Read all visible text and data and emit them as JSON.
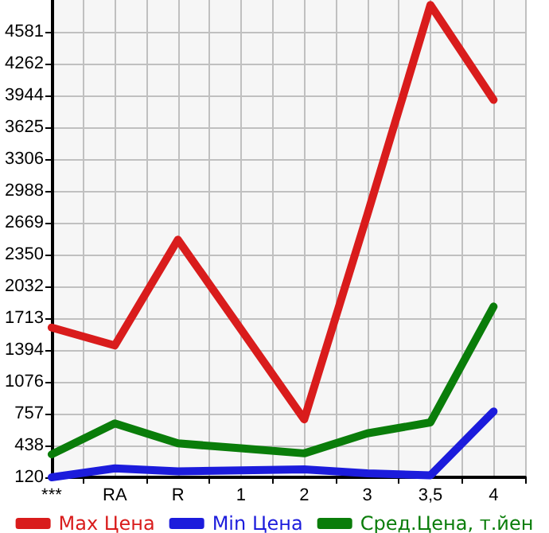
{
  "chart_data": {
    "type": "line",
    "categories": [
      "***",
      "RA",
      "R",
      "1",
      "2",
      "3",
      "3,5",
      "4"
    ],
    "series": [
      {
        "name": "Max Цена",
        "color": "#d91c1c",
        "values": [
          1620,
          1440,
          2500,
          1600,
          700,
          2750,
          4850,
          3900
        ]
      },
      {
        "name": "Min Цена",
        "color": "#1c1cdc",
        "values": [
          120,
          210,
          180,
          190,
          200,
          160,
          140,
          780
        ]
      },
      {
        "name": "Сред.Цена, т.йен",
        "color": "#0a7d0a",
        "values": [
          350,
          660,
          460,
          410,
          360,
          560,
          670,
          1830
        ]
      }
    ],
    "ylim": [
      120,
      4900
    ],
    "yticks": [
      120,
      438,
      757,
      1076,
      1394,
      1713,
      2032,
      2350,
      2669,
      2988,
      3306,
      3625,
      3944,
      4262,
      4581
    ],
    "grid": true,
    "legend": "bottom",
    "marker": "none",
    "line_style": "solid"
  }
}
